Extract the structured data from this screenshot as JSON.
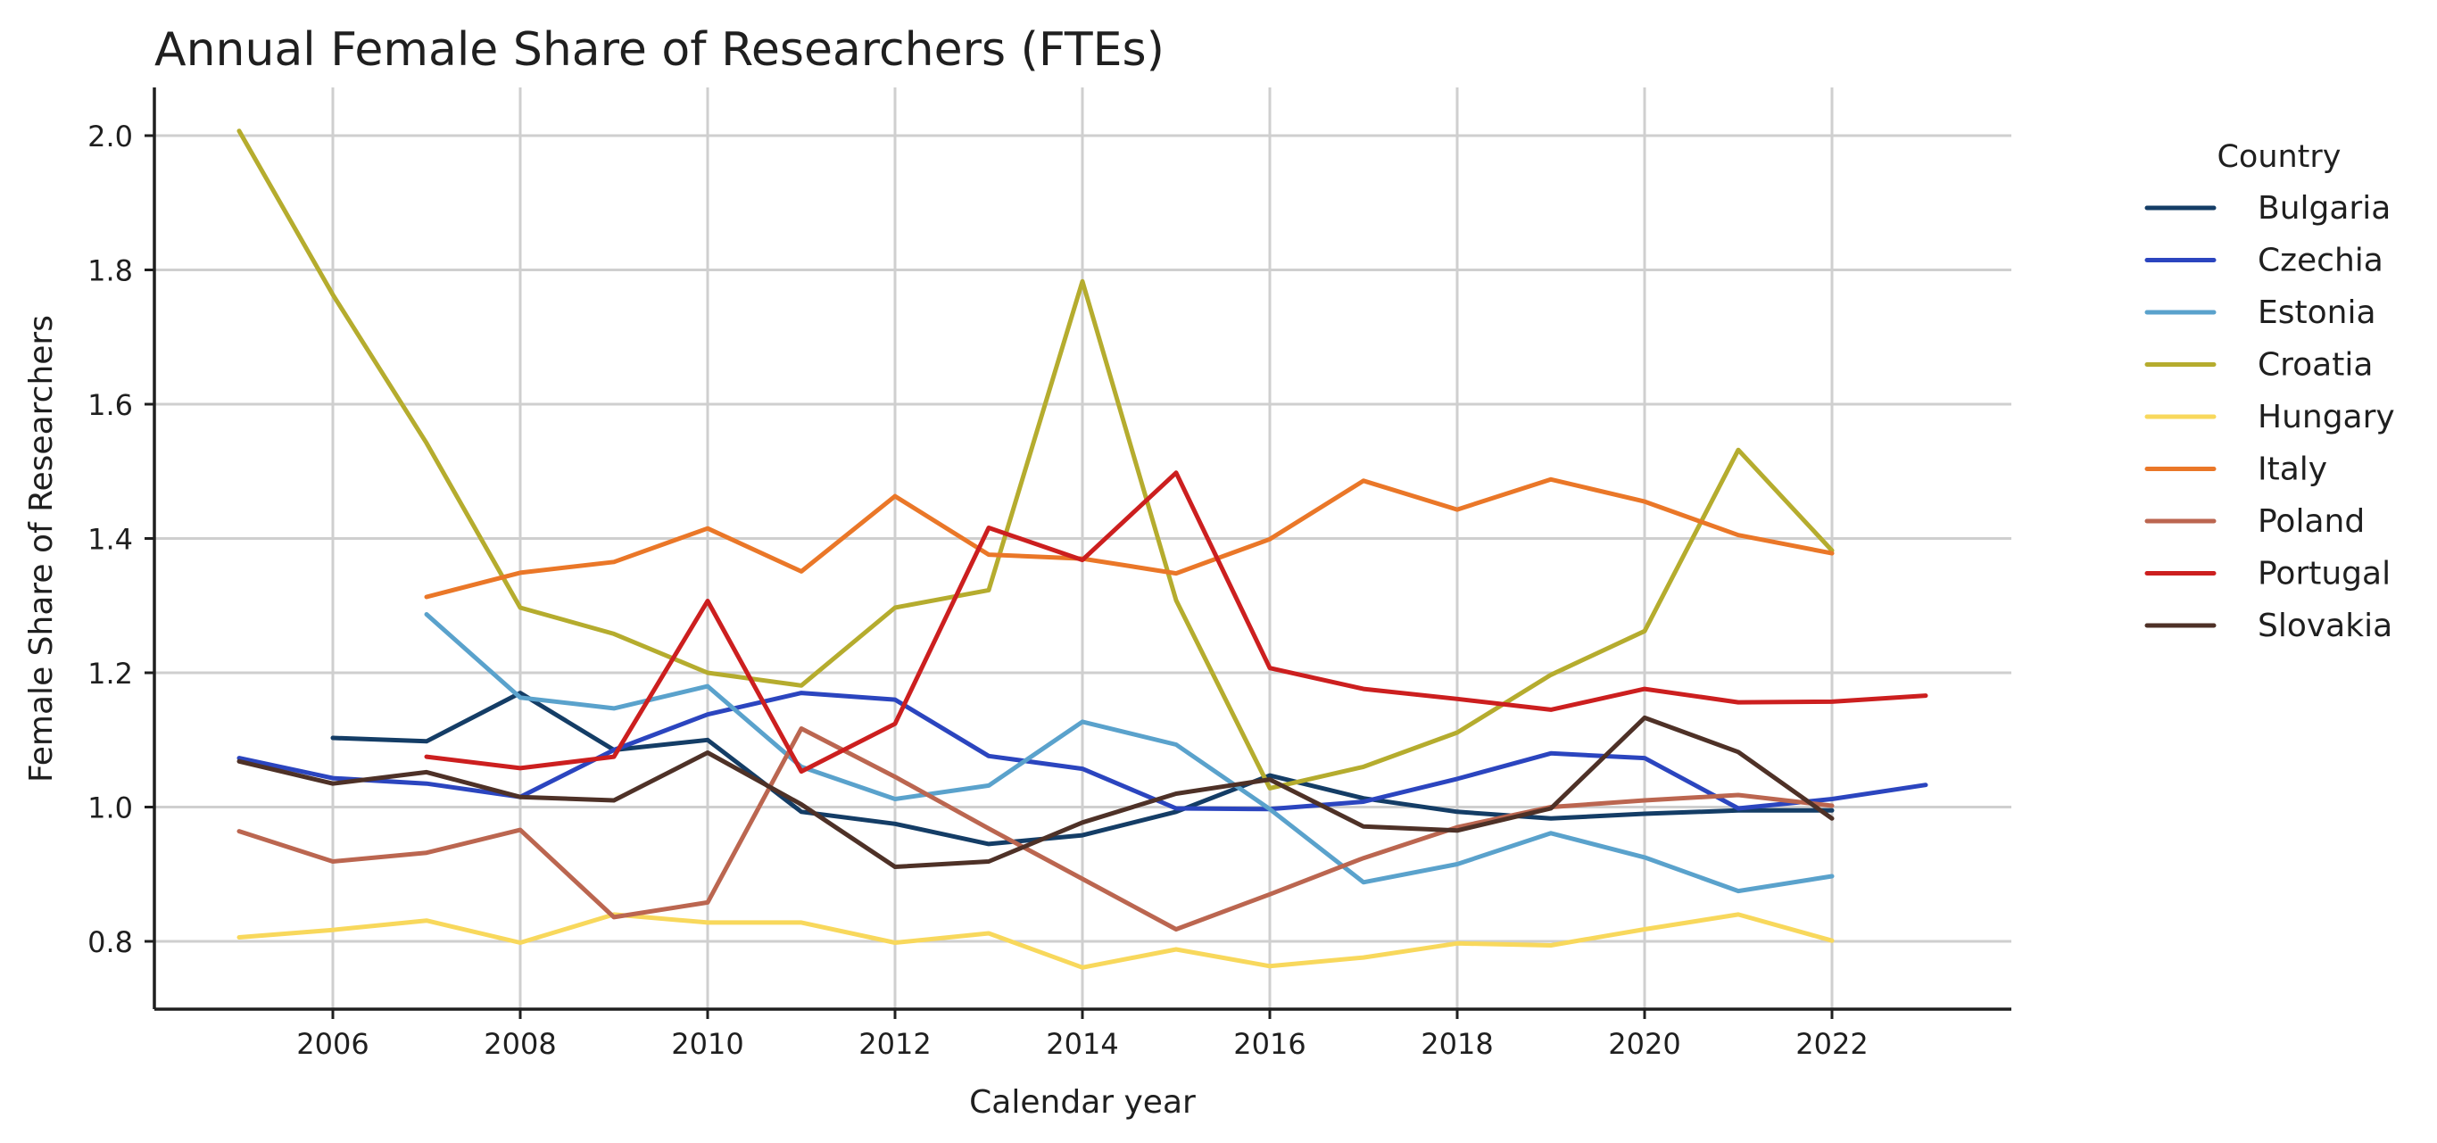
{
  "chart_data": {
    "type": "line",
    "title": "Annual Female Share of Researchers (FTEs)",
    "xlabel": "Calendar year",
    "ylabel": "Female Share of Researchers",
    "xlim": [
      2004.0,
      2024.5
    ],
    "ylim": [
      0.7,
      2.07
    ],
    "xticks": [
      2006,
      2008,
      2010,
      2012,
      2014,
      2016,
      2018,
      2020,
      2022
    ],
    "yticks": [
      0.8,
      1.0,
      1.2,
      1.4,
      1.6,
      1.8,
      2.0
    ],
    "ytick_labels": [
      "0.8",
      "1.0",
      "1.2",
      "1.4",
      "1.6",
      "1.8",
      "2.0"
    ],
    "grid": true,
    "legend": {
      "title": "Country",
      "placement": "right"
    },
    "series": [
      {
        "name": "Bulgaria",
        "color": "#143d66",
        "points": [
          [
            2006,
            1.103
          ],
          [
            2007,
            1.098
          ],
          [
            2008,
            1.17
          ],
          [
            2009,
            1.085
          ],
          [
            2010,
            1.1
          ],
          [
            2011,
            0.993
          ],
          [
            2012,
            0.975
          ],
          [
            2013,
            0.945
          ],
          [
            2014,
            0.958
          ],
          [
            2015,
            0.993
          ],
          [
            2016,
            1.047
          ],
          [
            2017,
            1.013
          ],
          [
            2018,
            0.993
          ],
          [
            2019,
            0.983
          ],
          [
            2020,
            0.99
          ],
          [
            2021,
            0.995
          ],
          [
            2022,
            0.995
          ]
        ]
      },
      {
        "name": "Czechia",
        "color": "#2b45bf",
        "points": [
          [
            2005,
            1.073
          ],
          [
            2006,
            1.043
          ],
          [
            2007,
            1.035
          ],
          [
            2008,
            1.015
          ],
          [
            2009,
            1.085
          ],
          [
            2010,
            1.138
          ],
          [
            2011,
            1.17
          ],
          [
            2012,
            1.16
          ],
          [
            2013,
            1.076
          ],
          [
            2014,
            1.057
          ],
          [
            2015,
            0.998
          ],
          [
            2016,
            0.997
          ],
          [
            2017,
            1.008
          ],
          [
            2018,
            1.042
          ],
          [
            2019,
            1.08
          ],
          [
            2020,
            1.073
          ],
          [
            2021,
            0.998
          ],
          [
            2022,
            1.012
          ],
          [
            2023,
            1.033
          ]
        ]
      },
      {
        "name": "Estonia",
        "color": "#5aa2cc",
        "points": [
          [
            2007,
            1.287
          ],
          [
            2008,
            1.163
          ],
          [
            2009,
            1.147
          ],
          [
            2010,
            1.18
          ],
          [
            2011,
            1.06
          ],
          [
            2012,
            1.012
          ],
          [
            2013,
            1.032
          ],
          [
            2014,
            1.127
          ],
          [
            2015,
            1.093
          ],
          [
            2016,
            0.997
          ],
          [
            2017,
            0.888
          ],
          [
            2018,
            0.915
          ],
          [
            2019,
            0.961
          ],
          [
            2020,
            0.925
          ],
          [
            2021,
            0.875
          ],
          [
            2022,
            0.897
          ]
        ]
      },
      {
        "name": "Croatia",
        "color": "#b5ac2e",
        "points": [
          [
            2005,
            2.007
          ],
          [
            2006,
            1.763
          ],
          [
            2007,
            1.542
          ],
          [
            2008,
            1.297
          ],
          [
            2009,
            1.258
          ],
          [
            2010,
            1.2
          ],
          [
            2011,
            1.181
          ],
          [
            2012,
            1.297
          ],
          [
            2013,
            1.323
          ],
          [
            2014,
            1.783
          ],
          [
            2015,
            1.308
          ],
          [
            2016,
            1.028
          ],
          [
            2017,
            1.06
          ],
          [
            2018,
            1.111
          ],
          [
            2019,
            1.197
          ],
          [
            2020,
            1.262
          ],
          [
            2021,
            1.532
          ],
          [
            2022,
            1.382
          ]
        ]
      },
      {
        "name": "Hungary",
        "color": "#f8d85c",
        "points": [
          [
            2005,
            0.806
          ],
          [
            2006,
            0.817
          ],
          [
            2007,
            0.831
          ],
          [
            2008,
            0.798
          ],
          [
            2009,
            0.84
          ],
          [
            2010,
            0.828
          ],
          [
            2011,
            0.828
          ],
          [
            2012,
            0.798
          ],
          [
            2013,
            0.812
          ],
          [
            2014,
            0.761
          ],
          [
            2015,
            0.788
          ],
          [
            2016,
            0.763
          ],
          [
            2017,
            0.776
          ],
          [
            2018,
            0.797
          ],
          [
            2019,
            0.794
          ],
          [
            2020,
            0.818
          ],
          [
            2021,
            0.84
          ],
          [
            2022,
            0.801
          ]
        ]
      },
      {
        "name": "Italy",
        "color": "#ea7728",
        "points": [
          [
            2007,
            1.313
          ],
          [
            2008,
            1.349
          ],
          [
            2009,
            1.365
          ],
          [
            2010,
            1.415
          ],
          [
            2011,
            1.351
          ],
          [
            2012,
            1.463
          ],
          [
            2013,
            1.376
          ],
          [
            2014,
            1.37
          ],
          [
            2015,
            1.348
          ],
          [
            2016,
            1.399
          ],
          [
            2017,
            1.486
          ],
          [
            2018,
            1.443
          ],
          [
            2019,
            1.488
          ],
          [
            2020,
            1.455
          ],
          [
            2021,
            1.405
          ],
          [
            2022,
            1.378
          ]
        ]
      },
      {
        "name": "Poland",
        "color": "#bb6650",
        "points": [
          [
            2005,
            0.964
          ],
          [
            2006,
            0.919
          ],
          [
            2007,
            0.932
          ],
          [
            2008,
            0.966
          ],
          [
            2009,
            0.836
          ],
          [
            2010,
            0.858
          ],
          [
            2011,
            1.117
          ],
          [
            2012,
            1.045
          ],
          [
            2013,
            0.968
          ],
          [
            2014,
            0.893
          ],
          [
            2015,
            0.818
          ],
          [
            2016,
            0.87
          ],
          [
            2017,
            0.924
          ],
          [
            2018,
            0.97
          ],
          [
            2019,
            1.0
          ],
          [
            2020,
            1.01
          ],
          [
            2021,
            1.018
          ],
          [
            2022,
            1.002
          ]
        ]
      },
      {
        "name": "Portugal",
        "color": "#cc1f1f",
        "points": [
          [
            2007,
            1.075
          ],
          [
            2008,
            1.058
          ],
          [
            2009,
            1.075
          ],
          [
            2010,
            1.307
          ],
          [
            2011,
            1.053
          ],
          [
            2012,
            1.124
          ],
          [
            2013,
            1.416
          ],
          [
            2014,
            1.368
          ],
          [
            2015,
            1.498
          ],
          [
            2016,
            1.207
          ],
          [
            2017,
            1.176
          ],
          [
            2018,
            1.161
          ],
          [
            2019,
            1.145
          ],
          [
            2020,
            1.176
          ],
          [
            2021,
            1.156
          ],
          [
            2022,
            1.157
          ],
          [
            2023,
            1.166
          ]
        ]
      },
      {
        "name": "Slovakia",
        "color": "#4e3127",
        "points": [
          [
            2005,
            1.068
          ],
          [
            2006,
            1.035
          ],
          [
            2007,
            1.052
          ],
          [
            2008,
            1.015
          ],
          [
            2009,
            1.01
          ],
          [
            2010,
            1.081
          ],
          [
            2011,
            1.004
          ],
          [
            2012,
            0.911
          ],
          [
            2013,
            0.919
          ],
          [
            2014,
            0.977
          ],
          [
            2015,
            1.02
          ],
          [
            2016,
            1.041
          ],
          [
            2017,
            0.971
          ],
          [
            2018,
            0.965
          ],
          [
            2019,
            0.998
          ],
          [
            2020,
            1.133
          ],
          [
            2021,
            1.082
          ],
          [
            2022,
            0.983
          ]
        ]
      }
    ]
  }
}
